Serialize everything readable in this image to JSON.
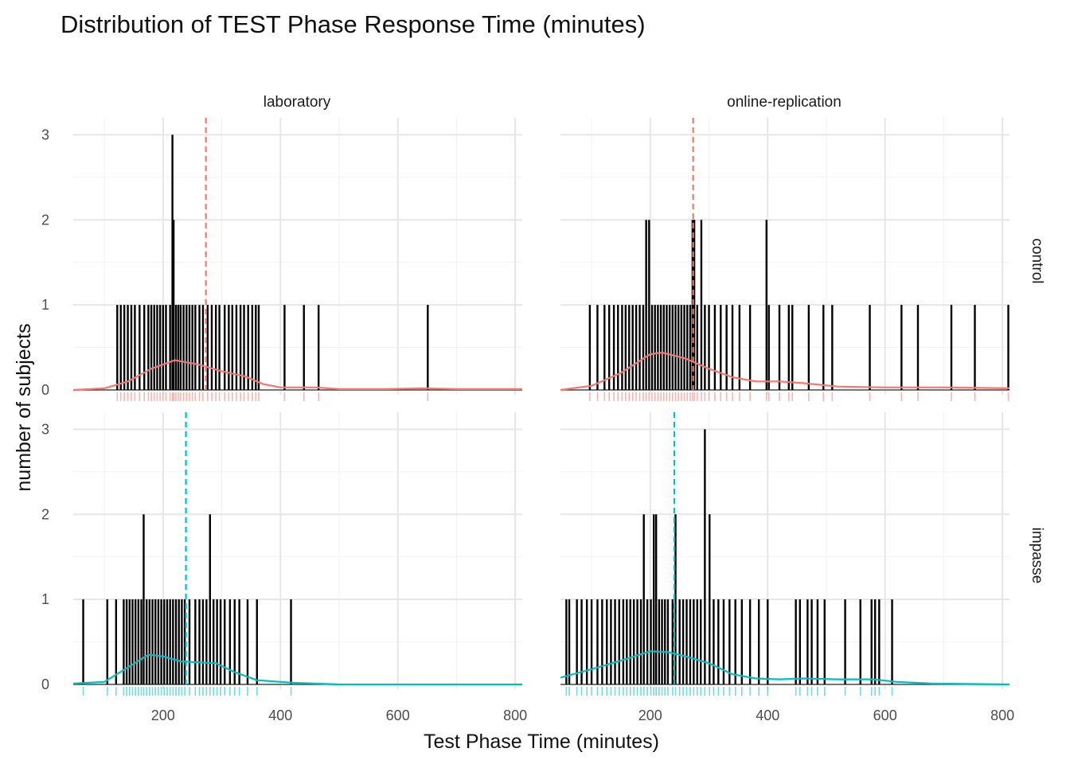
{
  "chart_data": {
    "type": "histogram",
    "title": "Distribution of TEST Phase Response Time (minutes)",
    "xlabel": "Test Phase Time (minutes)",
    "ylabel": "number of subjects",
    "xlim": [
      47,
      812
    ],
    "ylim": [
      0,
      3.2
    ],
    "xticks": [
      "200",
      "400",
      "600",
      "800"
    ],
    "yticks": [
      "0",
      "1",
      "2",
      "3"
    ],
    "columns": [
      "laboratory",
      "online-replication"
    ],
    "rows": [
      "control",
      "impasse"
    ],
    "grid": true,
    "colors": {
      "control": "#F8766D",
      "impasse": "#00BFC4",
      "bars": "#000000"
    },
    "panels": [
      {
        "row": "control",
        "column": "laboratory",
        "mean": 273,
        "bars": [
          {
            "x": 122,
            "count": 1
          },
          {
            "x": 128,
            "count": 1
          },
          {
            "x": 134,
            "count": 1
          },
          {
            "x": 140,
            "count": 1
          },
          {
            "x": 146,
            "count": 1
          },
          {
            "x": 152,
            "count": 1
          },
          {
            "x": 160,
            "count": 1
          },
          {
            "x": 168,
            "count": 1
          },
          {
            "x": 175,
            "count": 1
          },
          {
            "x": 180,
            "count": 1
          },
          {
            "x": 185,
            "count": 1
          },
          {
            "x": 190,
            "count": 1
          },
          {
            "x": 195,
            "count": 1
          },
          {
            "x": 200,
            "count": 1
          },
          {
            "x": 205,
            "count": 1
          },
          {
            "x": 212,
            "count": 1
          },
          {
            "x": 216,
            "count": 3
          },
          {
            "x": 218,
            "count": 2
          },
          {
            "x": 222,
            "count": 1
          },
          {
            "x": 226,
            "count": 1
          },
          {
            "x": 230,
            "count": 1
          },
          {
            "x": 235,
            "count": 1
          },
          {
            "x": 240,
            "count": 1
          },
          {
            "x": 245,
            "count": 1
          },
          {
            "x": 250,
            "count": 1
          },
          {
            "x": 255,
            "count": 1
          },
          {
            "x": 262,
            "count": 1
          },
          {
            "x": 268,
            "count": 1
          },
          {
            "x": 276,
            "count": 1
          },
          {
            "x": 283,
            "count": 1
          },
          {
            "x": 290,
            "count": 1
          },
          {
            "x": 296,
            "count": 1
          },
          {
            "x": 305,
            "count": 1
          },
          {
            "x": 312,
            "count": 1
          },
          {
            "x": 318,
            "count": 1
          },
          {
            "x": 325,
            "count": 1
          },
          {
            "x": 332,
            "count": 1
          },
          {
            "x": 338,
            "count": 1
          },
          {
            "x": 345,
            "count": 1
          },
          {
            "x": 352,
            "count": 1
          },
          {
            "x": 358,
            "count": 1
          },
          {
            "x": 363,
            "count": 1
          },
          {
            "x": 407,
            "count": 1
          },
          {
            "x": 440,
            "count": 1
          },
          {
            "x": 465,
            "count": 1
          },
          {
            "x": 651,
            "count": 1
          }
        ],
        "density": [
          [
            47,
            0
          ],
          [
            100,
            0.02
          ],
          [
            140,
            0.1
          ],
          [
            180,
            0.25
          ],
          [
            220,
            0.35
          ],
          [
            260,
            0.3
          ],
          [
            300,
            0.22
          ],
          [
            340,
            0.16
          ],
          [
            370,
            0.07
          ],
          [
            400,
            0.03
          ],
          [
            460,
            0.03
          ],
          [
            500,
            0.01
          ],
          [
            580,
            0.01
          ],
          [
            640,
            0.02
          ],
          [
            700,
            0.01
          ],
          [
            812,
            0.01
          ]
        ]
      },
      {
        "row": "control",
        "column": "online-replication",
        "mean": 273,
        "bars": [
          {
            "x": 97,
            "count": 1
          },
          {
            "x": 110,
            "count": 1
          },
          {
            "x": 122,
            "count": 1
          },
          {
            "x": 130,
            "count": 1
          },
          {
            "x": 138,
            "count": 1
          },
          {
            "x": 145,
            "count": 1
          },
          {
            "x": 152,
            "count": 1
          },
          {
            "x": 158,
            "count": 1
          },
          {
            "x": 164,
            "count": 1
          },
          {
            "x": 170,
            "count": 1
          },
          {
            "x": 176,
            "count": 1
          },
          {
            "x": 182,
            "count": 1
          },
          {
            "x": 188,
            "count": 1
          },
          {
            "x": 193,
            "count": 2
          },
          {
            "x": 198,
            "count": 2
          },
          {
            "x": 203,
            "count": 1
          },
          {
            "x": 208,
            "count": 1
          },
          {
            "x": 213,
            "count": 1
          },
          {
            "x": 218,
            "count": 1
          },
          {
            "x": 223,
            "count": 1
          },
          {
            "x": 228,
            "count": 1
          },
          {
            "x": 233,
            "count": 1
          },
          {
            "x": 238,
            "count": 1
          },
          {
            "x": 243,
            "count": 1
          },
          {
            "x": 248,
            "count": 1
          },
          {
            "x": 253,
            "count": 1
          },
          {
            "x": 258,
            "count": 1
          },
          {
            "x": 263,
            "count": 1
          },
          {
            "x": 268,
            "count": 1
          },
          {
            "x": 272,
            "count": 2
          },
          {
            "x": 275,
            "count": 2
          },
          {
            "x": 280,
            "count": 1
          },
          {
            "x": 287,
            "count": 2
          },
          {
            "x": 293,
            "count": 1
          },
          {
            "x": 300,
            "count": 1
          },
          {
            "x": 310,
            "count": 1
          },
          {
            "x": 320,
            "count": 1
          },
          {
            "x": 330,
            "count": 1
          },
          {
            "x": 340,
            "count": 1
          },
          {
            "x": 352,
            "count": 1
          },
          {
            "x": 370,
            "count": 1
          },
          {
            "x": 398,
            "count": 2
          },
          {
            "x": 402,
            "count": 1
          },
          {
            "x": 420,
            "count": 1
          },
          {
            "x": 436,
            "count": 1
          },
          {
            "x": 442,
            "count": 1
          },
          {
            "x": 470,
            "count": 1
          },
          {
            "x": 495,
            "count": 1
          },
          {
            "x": 510,
            "count": 1
          },
          {
            "x": 574,
            "count": 1
          },
          {
            "x": 628,
            "count": 1
          },
          {
            "x": 656,
            "count": 1
          },
          {
            "x": 713,
            "count": 1
          },
          {
            "x": 753,
            "count": 1
          },
          {
            "x": 810,
            "count": 1
          }
        ],
        "density": [
          [
            47,
            0
          ],
          [
            100,
            0.05
          ],
          [
            150,
            0.2
          ],
          [
            200,
            0.42
          ],
          [
            220,
            0.44
          ],
          [
            260,
            0.37
          ],
          [
            300,
            0.25
          ],
          [
            340,
            0.15
          ],
          [
            380,
            0.1
          ],
          [
            420,
            0.1
          ],
          [
            460,
            0.08
          ],
          [
            520,
            0.04
          ],
          [
            600,
            0.03
          ],
          [
            700,
            0.03
          ],
          [
            812,
            0.02
          ]
        ]
      },
      {
        "row": "impasse",
        "column": "laboratory",
        "mean": 239,
        "bars": [
          {
            "x": 64,
            "count": 1
          },
          {
            "x": 105,
            "count": 1
          },
          {
            "x": 120,
            "count": 1
          },
          {
            "x": 133,
            "count": 1
          },
          {
            "x": 138,
            "count": 1
          },
          {
            "x": 143,
            "count": 1
          },
          {
            "x": 148,
            "count": 1
          },
          {
            "x": 153,
            "count": 1
          },
          {
            "x": 158,
            "count": 1
          },
          {
            "x": 163,
            "count": 1
          },
          {
            "x": 167,
            "count": 2
          },
          {
            "x": 172,
            "count": 1
          },
          {
            "x": 177,
            "count": 1
          },
          {
            "x": 182,
            "count": 1
          },
          {
            "x": 187,
            "count": 1
          },
          {
            "x": 192,
            "count": 1
          },
          {
            "x": 197,
            "count": 1
          },
          {
            "x": 202,
            "count": 1
          },
          {
            "x": 207,
            "count": 1
          },
          {
            "x": 212,
            "count": 1
          },
          {
            "x": 217,
            "count": 1
          },
          {
            "x": 222,
            "count": 1
          },
          {
            "x": 227,
            "count": 1
          },
          {
            "x": 232,
            "count": 1
          },
          {
            "x": 237,
            "count": 1
          },
          {
            "x": 245,
            "count": 1
          },
          {
            "x": 255,
            "count": 1
          },
          {
            "x": 262,
            "count": 1
          },
          {
            "x": 268,
            "count": 1
          },
          {
            "x": 274,
            "count": 1
          },
          {
            "x": 280,
            "count": 2
          },
          {
            "x": 286,
            "count": 1
          },
          {
            "x": 292,
            "count": 1
          },
          {
            "x": 298,
            "count": 1
          },
          {
            "x": 305,
            "count": 1
          },
          {
            "x": 314,
            "count": 1
          },
          {
            "x": 322,
            "count": 1
          },
          {
            "x": 330,
            "count": 1
          },
          {
            "x": 344,
            "count": 1
          },
          {
            "x": 360,
            "count": 1
          },
          {
            "x": 418,
            "count": 1
          }
        ],
        "density": [
          [
            47,
            0.01
          ],
          [
            100,
            0.03
          ],
          [
            140,
            0.2
          ],
          [
            175,
            0.35
          ],
          [
            200,
            0.33
          ],
          [
            230,
            0.27
          ],
          [
            260,
            0.26
          ],
          [
            290,
            0.25
          ],
          [
            320,
            0.15
          ],
          [
            360,
            0.05
          ],
          [
            420,
            0.02
          ],
          [
            500,
            0
          ],
          [
            812,
            0
          ]
        ]
      },
      {
        "row": "impasse",
        "column": "online-replication",
        "mean": 241,
        "bars": [
          {
            "x": 57,
            "count": 1
          },
          {
            "x": 62,
            "count": 1
          },
          {
            "x": 75,
            "count": 1
          },
          {
            "x": 83,
            "count": 1
          },
          {
            "x": 92,
            "count": 1
          },
          {
            "x": 100,
            "count": 1
          },
          {
            "x": 110,
            "count": 1
          },
          {
            "x": 118,
            "count": 1
          },
          {
            "x": 126,
            "count": 1
          },
          {
            "x": 133,
            "count": 1
          },
          {
            "x": 140,
            "count": 1
          },
          {
            "x": 147,
            "count": 1
          },
          {
            "x": 154,
            "count": 1
          },
          {
            "x": 160,
            "count": 1
          },
          {
            "x": 166,
            "count": 1
          },
          {
            "x": 172,
            "count": 1
          },
          {
            "x": 178,
            "count": 1
          },
          {
            "x": 184,
            "count": 1
          },
          {
            "x": 189,
            "count": 2
          },
          {
            "x": 195,
            "count": 1
          },
          {
            "x": 201,
            "count": 1
          },
          {
            "x": 206,
            "count": 2
          },
          {
            "x": 210,
            "count": 2
          },
          {
            "x": 215,
            "count": 1
          },
          {
            "x": 220,
            "count": 1
          },
          {
            "x": 225,
            "count": 1
          },
          {
            "x": 230,
            "count": 1
          },
          {
            "x": 238,
            "count": 1
          },
          {
            "x": 243,
            "count": 2
          },
          {
            "x": 250,
            "count": 1
          },
          {
            "x": 256,
            "count": 1
          },
          {
            "x": 262,
            "count": 1
          },
          {
            "x": 268,
            "count": 1
          },
          {
            "x": 274,
            "count": 1
          },
          {
            "x": 280,
            "count": 1
          },
          {
            "x": 286,
            "count": 1
          },
          {
            "x": 293,
            "count": 3
          },
          {
            "x": 301,
            "count": 2
          },
          {
            "x": 308,
            "count": 1
          },
          {
            "x": 316,
            "count": 1
          },
          {
            "x": 325,
            "count": 1
          },
          {
            "x": 335,
            "count": 1
          },
          {
            "x": 345,
            "count": 1
          },
          {
            "x": 356,
            "count": 1
          },
          {
            "x": 370,
            "count": 1
          },
          {
            "x": 385,
            "count": 1
          },
          {
            "x": 400,
            "count": 1
          },
          {
            "x": 448,
            "count": 1
          },
          {
            "x": 455,
            "count": 1
          },
          {
            "x": 468,
            "count": 1
          },
          {
            "x": 475,
            "count": 1
          },
          {
            "x": 485,
            "count": 1
          },
          {
            "x": 497,
            "count": 1
          },
          {
            "x": 532,
            "count": 1
          },
          {
            "x": 558,
            "count": 1
          },
          {
            "x": 577,
            "count": 1
          },
          {
            "x": 583,
            "count": 1
          },
          {
            "x": 590,
            "count": 1
          },
          {
            "x": 612,
            "count": 1
          }
        ],
        "density": [
          [
            47,
            0.08
          ],
          [
            100,
            0.18
          ],
          [
            150,
            0.28
          ],
          [
            200,
            0.39
          ],
          [
            230,
            0.38
          ],
          [
            260,
            0.33
          ],
          [
            300,
            0.25
          ],
          [
            340,
            0.12
          ],
          [
            380,
            0.07
          ],
          [
            420,
            0.06
          ],
          [
            460,
            0.07
          ],
          [
            520,
            0.06
          ],
          [
            580,
            0.06
          ],
          [
            620,
            0.03
          ],
          [
            680,
            0.01
          ],
          [
            812,
            0
          ]
        ]
      }
    ]
  }
}
